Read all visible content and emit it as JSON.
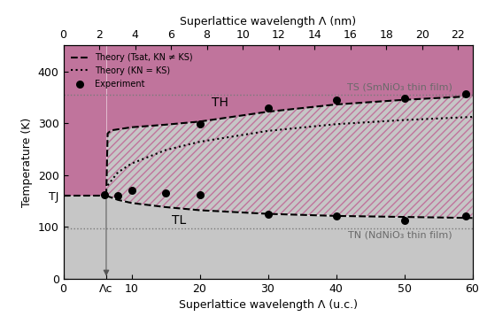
{
  "chart_data": {
    "type": "line",
    "xlabel": "Superlattice wavelength Λ (u.c.)",
    "x2label": "Superlattice wavelength Λ (nm)",
    "ylabel": "Temperature (K)",
    "xlim": [
      0,
      60
    ],
    "xticks": [
      0,
      {
        "value": 6.3,
        "label": "Λc"
      },
      10,
      20,
      30,
      40,
      50,
      60
    ],
    "x2lim": [
      0,
      22.8
    ],
    "x2ticks": [
      0,
      2,
      4,
      6,
      8,
      10,
      12,
      14,
      16,
      18,
      20,
      22
    ],
    "ylim": [
      0,
      450
    ],
    "yticks": [
      0,
      100,
      {
        "value": 160,
        "label": "TJ"
      },
      200,
      300,
      400
    ],
    "grid": false,
    "legend": "upper left",
    "series": [
      {
        "name": "Theory (Tsat, KN ≠ KS)",
        "type": "line",
        "line_style": "dashed",
        "color": "#000000",
        "x": [
          0,
          6.3,
          6.3,
          6.3,
          6.5,
          7,
          10,
          15,
          20,
          30,
          40,
          50,
          60,
          60,
          6.3,
          8,
          10,
          15,
          20,
          30,
          40,
          50,
          60
        ],
        "values": [
          160,
          160,
          null,
          160,
          280,
          286,
          292,
          297,
          303,
          322,
          336,
          345,
          352,
          null,
          160,
          152,
          146,
          138,
          132,
          125,
          121,
          119,
          117
        ]
      },
      {
        "name": "Theory (KN = KS)",
        "type": "line",
        "line_style": "dotted",
        "color": "#000000",
        "x": [
          6.5,
          8,
          10,
          15,
          20,
          30,
          40,
          50,
          60
        ],
        "values": [
          180,
          205,
          222,
          248,
          264,
          285,
          298,
          306,
          312
        ]
      },
      {
        "name": "Experiment",
        "type": "scatter",
        "marker": "o",
        "color": "#000000",
        "x": [
          6,
          8,
          10,
          15,
          20,
          30,
          40,
          50,
          59,
          20,
          30,
          40,
          50,
          59
        ],
        "values": [
          162,
          160,
          170,
          165,
          298,
          330,
          345,
          348,
          357,
          162,
          125,
          120,
          112,
          120
        ]
      }
    ],
    "reference_lines": [
      {
        "label": "TS (SmNiO₃ thin film)",
        "value": 355
      },
      {
        "label": "TN (NdNiO₃ thin film)",
        "value": 97
      }
    ],
    "annotations": [
      {
        "text": "TH",
        "x": 23,
        "y": 340
      },
      {
        "text": "TL",
        "x": 17,
        "y": 112
      }
    ]
  }
}
